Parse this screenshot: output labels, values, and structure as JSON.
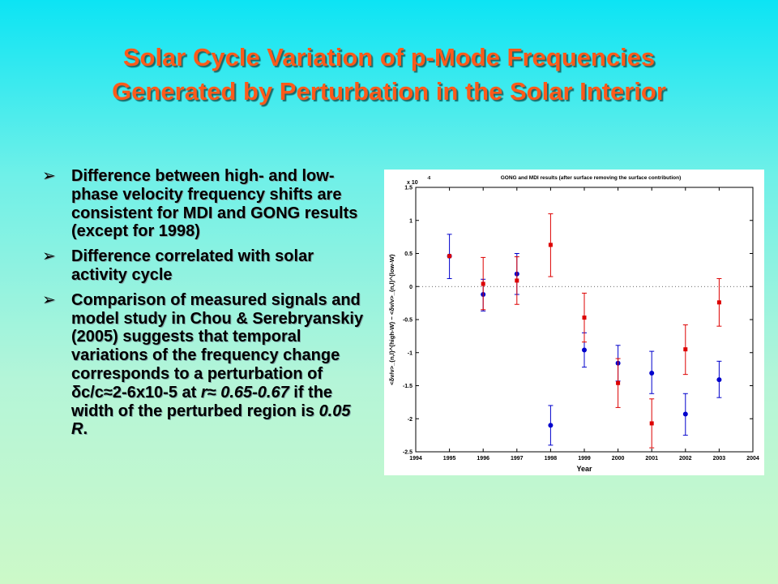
{
  "slide": {
    "title_line1": "Solar Cycle Variation of p-Mode Frequencies",
    "title_line2": "Generated by Perturbation in the Solar Interior",
    "bullets": [
      {
        "prefix": "Difference between high- and low-phase velocity frequency shifts are consistent for MDI and GONG results (except for 1998)"
      },
      {
        "prefix": "Difference correlated with solar activity cycle"
      },
      {
        "prefix": "Comparison of measured signals and model study in Chou & Serebryanskiy (2005) suggests that temporal variations of the frequency change corresponds to a perturbation of δc/c≈2-6x10-5 at ",
        "em1": "r≈ 0.65-0.67",
        "mid": " if the width of the perturbed region is ",
        "em2": "0.05 R",
        "suffix": "."
      }
    ],
    "bullet_symbol": "➢",
    "colors": {
      "title": "#ff5a1a",
      "series_blue": "#0000cc",
      "series_red": "#dd0000"
    }
  },
  "chart_data": {
    "type": "scatter",
    "title": "GONG and MDI results (after surface removing the surface contribution)",
    "xlabel": "Year",
    "ylabel": "<δν/ν>_{n,l}^{high-W} − <δν/ν>_{n,l}^{low-W}",
    "y_multiplier": "x 10",
    "y_exponent": "-6",
    "xlim": [
      1994,
      2004
    ],
    "ylim": [
      -2.5,
      1.5
    ],
    "xticks": [
      "1994",
      "1995",
      "1996",
      "1997",
      "1998",
      "1999",
      "2000",
      "2001",
      "2002",
      "2003",
      "2004"
    ],
    "yticks": [
      "1.5",
      "1",
      "0.5",
      "0",
      "-0.5",
      "-1",
      "-1.5",
      "-2",
      "-2.5"
    ],
    "zero_line": "dotted",
    "series": [
      {
        "marker": "circle",
        "color": "#0000cc",
        "points": [
          {
            "x": 1995,
            "y": 0.46,
            "lo": 0.12,
            "hi": 0.79
          },
          {
            "x": 1996,
            "y": -0.12,
            "lo": -0.37,
            "hi": 0.11
          },
          {
            "x": 1997,
            "y": 0.19,
            "lo": -0.12,
            "hi": 0.5
          },
          {
            "x": 1998,
            "y": -2.1,
            "lo": -2.4,
            "hi": -1.8
          },
          {
            "x": 1999,
            "y": -0.96,
            "lo": -1.22,
            "hi": -0.7
          },
          {
            "x": 2000,
            "y": -1.16,
            "lo": -1.43,
            "hi": -0.89
          },
          {
            "x": 2001,
            "y": -1.31,
            "lo": -1.62,
            "hi": -0.98
          },
          {
            "x": 2002,
            "y": -1.93,
            "lo": -2.25,
            "hi": -1.62
          },
          {
            "x": 2003,
            "y": -1.41,
            "lo": -1.68,
            "hi": -1.13
          }
        ]
      },
      {
        "marker": "square",
        "color": "#dd0000",
        "points": [
          {
            "x": 1995,
            "y": 0.46,
            "lo": 0.46,
            "hi": 0.46
          },
          {
            "x": 1996,
            "y": 0.04,
            "lo": -0.35,
            "hi": 0.44
          },
          {
            "x": 1997,
            "y": 0.09,
            "lo": -0.27,
            "hi": 0.45
          },
          {
            "x": 1998,
            "y": 0.63,
            "lo": 0.15,
            "hi": 1.1
          },
          {
            "x": 1999,
            "y": -0.47,
            "lo": -0.84,
            "hi": -0.1
          },
          {
            "x": 2000,
            "y": -1.46,
            "lo": -1.83,
            "hi": -1.09
          },
          {
            "x": 2001,
            "y": -2.07,
            "lo": -2.44,
            "hi": -1.7
          },
          {
            "x": 2002,
            "y": -0.95,
            "lo": -1.33,
            "hi": -0.58
          },
          {
            "x": 2003,
            "y": -0.24,
            "lo": -0.6,
            "hi": 0.12
          }
        ]
      }
    ]
  }
}
